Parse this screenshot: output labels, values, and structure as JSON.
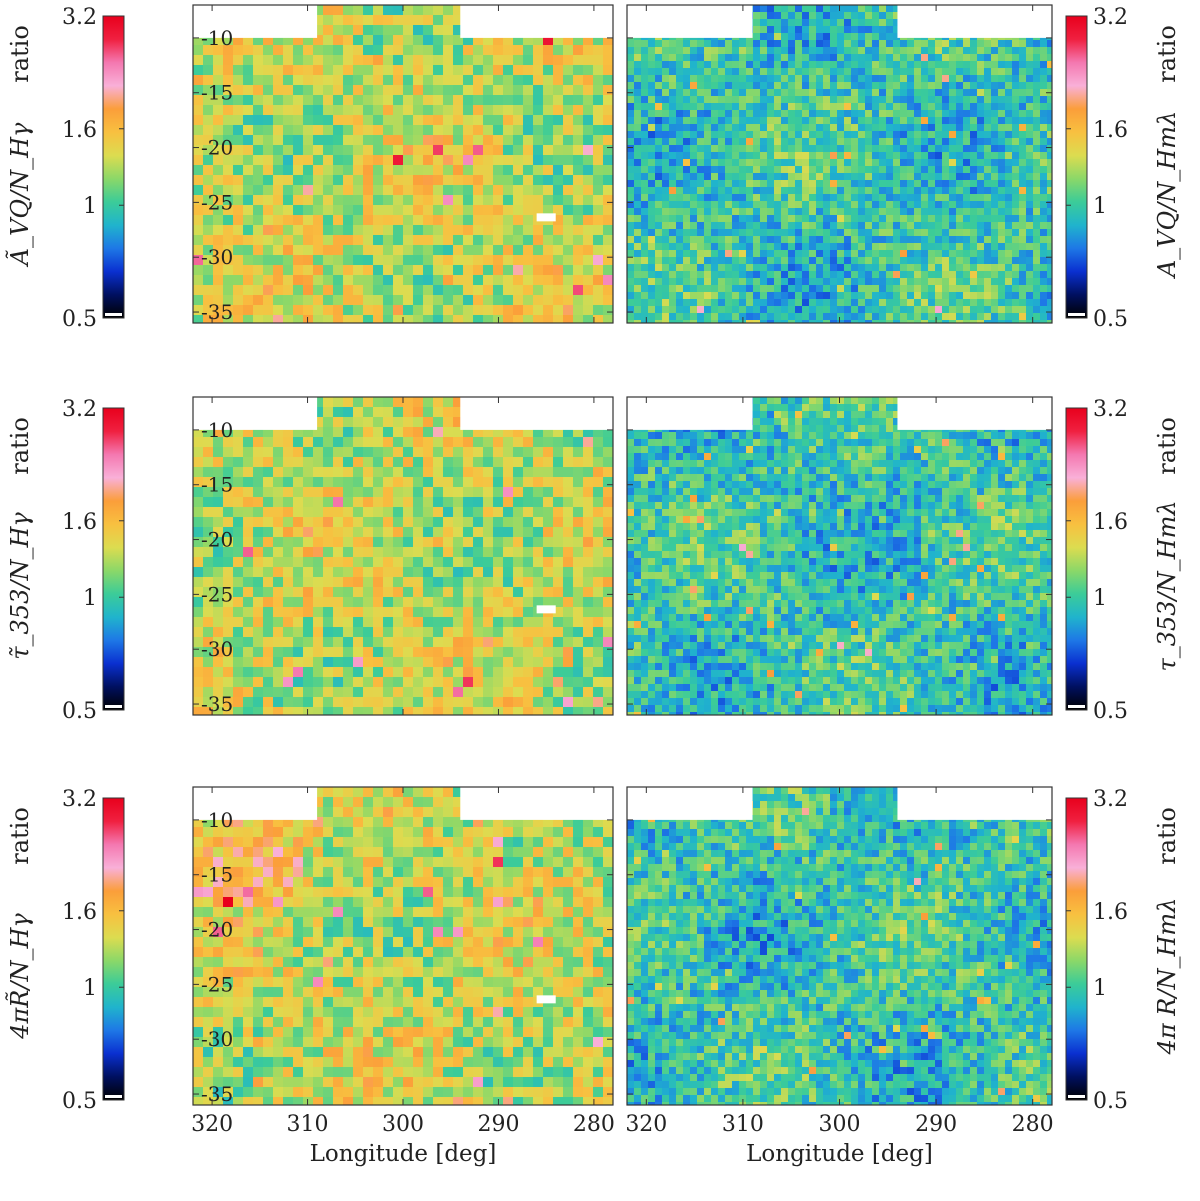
{
  "colors": {
    "colormap": [
      "#000000",
      "#001060",
      "#0a30d0",
      "#1e78e6",
      "#20b4cc",
      "#3ccc98",
      "#8cd868",
      "#dcdc50",
      "#f8c040",
      "#fb9e3a",
      "#f9b0d8",
      "#f478b0",
      "#f02040",
      "#e8001c"
    ],
    "frame": "#333333",
    "background": "#ffffff"
  },
  "chart_data": [
    {
      "type": "heatmap",
      "panel": "smoothed-A-ratio",
      "row": 0,
      "side": "left",
      "ylabel_ratio": "ratio",
      "ylabel_math": "Ã_VQ/N_Hγ",
      "colorbar_ticks": [
        "3.2",
        "1.6",
        "1",
        "0.5"
      ],
      "latitude_ticks": [
        "-10",
        "-15",
        "-20",
        "-25",
        "-30",
        "-35"
      ],
      "xlim": [
        322,
        278
      ],
      "ylim": [
        -36,
        -7
      ]
    },
    {
      "type": "heatmap",
      "panel": "A-ratio",
      "row": 0,
      "side": "right",
      "ylabel_ratio": "ratio",
      "ylabel_math": "A_VQ/N_Hmλ",
      "colorbar_ticks": [
        "3.2",
        "1.6",
        "1",
        "0.5"
      ],
      "xlim": [
        322,
        278
      ],
      "ylim": [
        -36,
        -7
      ]
    },
    {
      "type": "heatmap",
      "panel": "smoothed-tau-ratio",
      "row": 1,
      "side": "left",
      "ylabel_ratio": "ratio",
      "ylabel_math": "τ̃_353/N_Hγ",
      "colorbar_ticks": [
        "3.2",
        "1.6",
        "1",
        "0.5"
      ],
      "latitude_ticks": [
        "-10",
        "-15",
        "-20",
        "-25",
        "-30",
        "-35"
      ],
      "xlim": [
        322,
        278
      ],
      "ylim": [
        -36,
        -7
      ]
    },
    {
      "type": "heatmap",
      "panel": "tau-ratio",
      "row": 1,
      "side": "right",
      "ylabel_ratio": "ratio",
      "ylabel_math": "τ_353/N_Hmλ",
      "colorbar_ticks": [
        "3.2",
        "1.6",
        "1",
        "0.5"
      ],
      "xlim": [
        322,
        278
      ],
      "ylim": [
        -36,
        -7
      ]
    },
    {
      "type": "heatmap",
      "panel": "smoothed-R-ratio",
      "row": 2,
      "side": "left",
      "ylabel_ratio": "ratio",
      "ylabel_math": "4πR̃/N_Hγ",
      "colorbar_ticks": [
        "3.2",
        "1.6",
        "1",
        "0.5"
      ],
      "latitude_ticks": [
        "-10",
        "-15",
        "-20",
        "-25",
        "-30",
        "-35"
      ],
      "xlabel": "Longitude [deg]",
      "longitude_ticks": [
        "320",
        "310",
        "300",
        "290",
        "280"
      ],
      "xlim": [
        322,
        278
      ],
      "ylim": [
        -36,
        -7
      ]
    },
    {
      "type": "heatmap",
      "panel": "R-ratio",
      "row": 2,
      "side": "right",
      "ylabel_ratio": "ratio",
      "ylabel_math": "4π R/N_Hmλ",
      "colorbar_ticks": [
        "3.2",
        "1.6",
        "1",
        "0.5"
      ],
      "xlabel": "Longitude [deg]",
      "longitude_ticks": [
        "320",
        "310",
        "300",
        "290",
        "280"
      ],
      "xlim": [
        322,
        278
      ],
      "ylim": [
        -36,
        -7
      ]
    }
  ]
}
